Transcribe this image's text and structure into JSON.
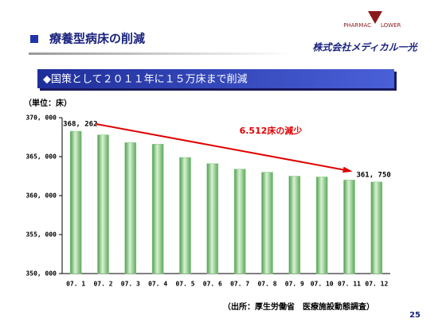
{
  "header": {
    "title": "療養型病床の削減",
    "logo_top_left": "PHARMAC",
    "logo_top_right": "LOWER",
    "company": "株式会社メディカル一光"
  },
  "banner": "◆国策として２０１１年に１５万床まで削減",
  "unit": "（単位：床）",
  "chart_data": {
    "type": "bar",
    "categories": [
      "07. 1",
      "07. 2",
      "07. 3",
      "07. 4",
      "07. 5",
      "07. 6",
      "07. 7",
      "07. 8",
      "07. 9",
      "07. 10",
      "07. 11",
      "07. 12"
    ],
    "values": [
      368262,
      367800,
      366800,
      366600,
      364900,
      364100,
      363400,
      363000,
      362500,
      362400,
      362000,
      361750
    ],
    "value_labels": [
      "368, 262",
      null,
      null,
      null,
      null,
      null,
      null,
      null,
      null,
      null,
      null,
      "361, 750"
    ],
    "color": "#7fc87f",
    "ylim": [
      350000,
      370000
    ],
    "yticks": [
      {
        "value": 350000,
        "label": "350, 000"
      },
      {
        "value": 355000,
        "label": "355, 000"
      },
      {
        "value": 360000,
        "label": "360, 000"
      },
      {
        "value": 365000,
        "label": "365, 000"
      },
      {
        "value": 370000,
        "label": "370, 000"
      }
    ],
    "annotation": "6.512床の減少"
  },
  "source": "（出所：厚生労働省　医療施設動態調査）",
  "page_number": "25"
}
